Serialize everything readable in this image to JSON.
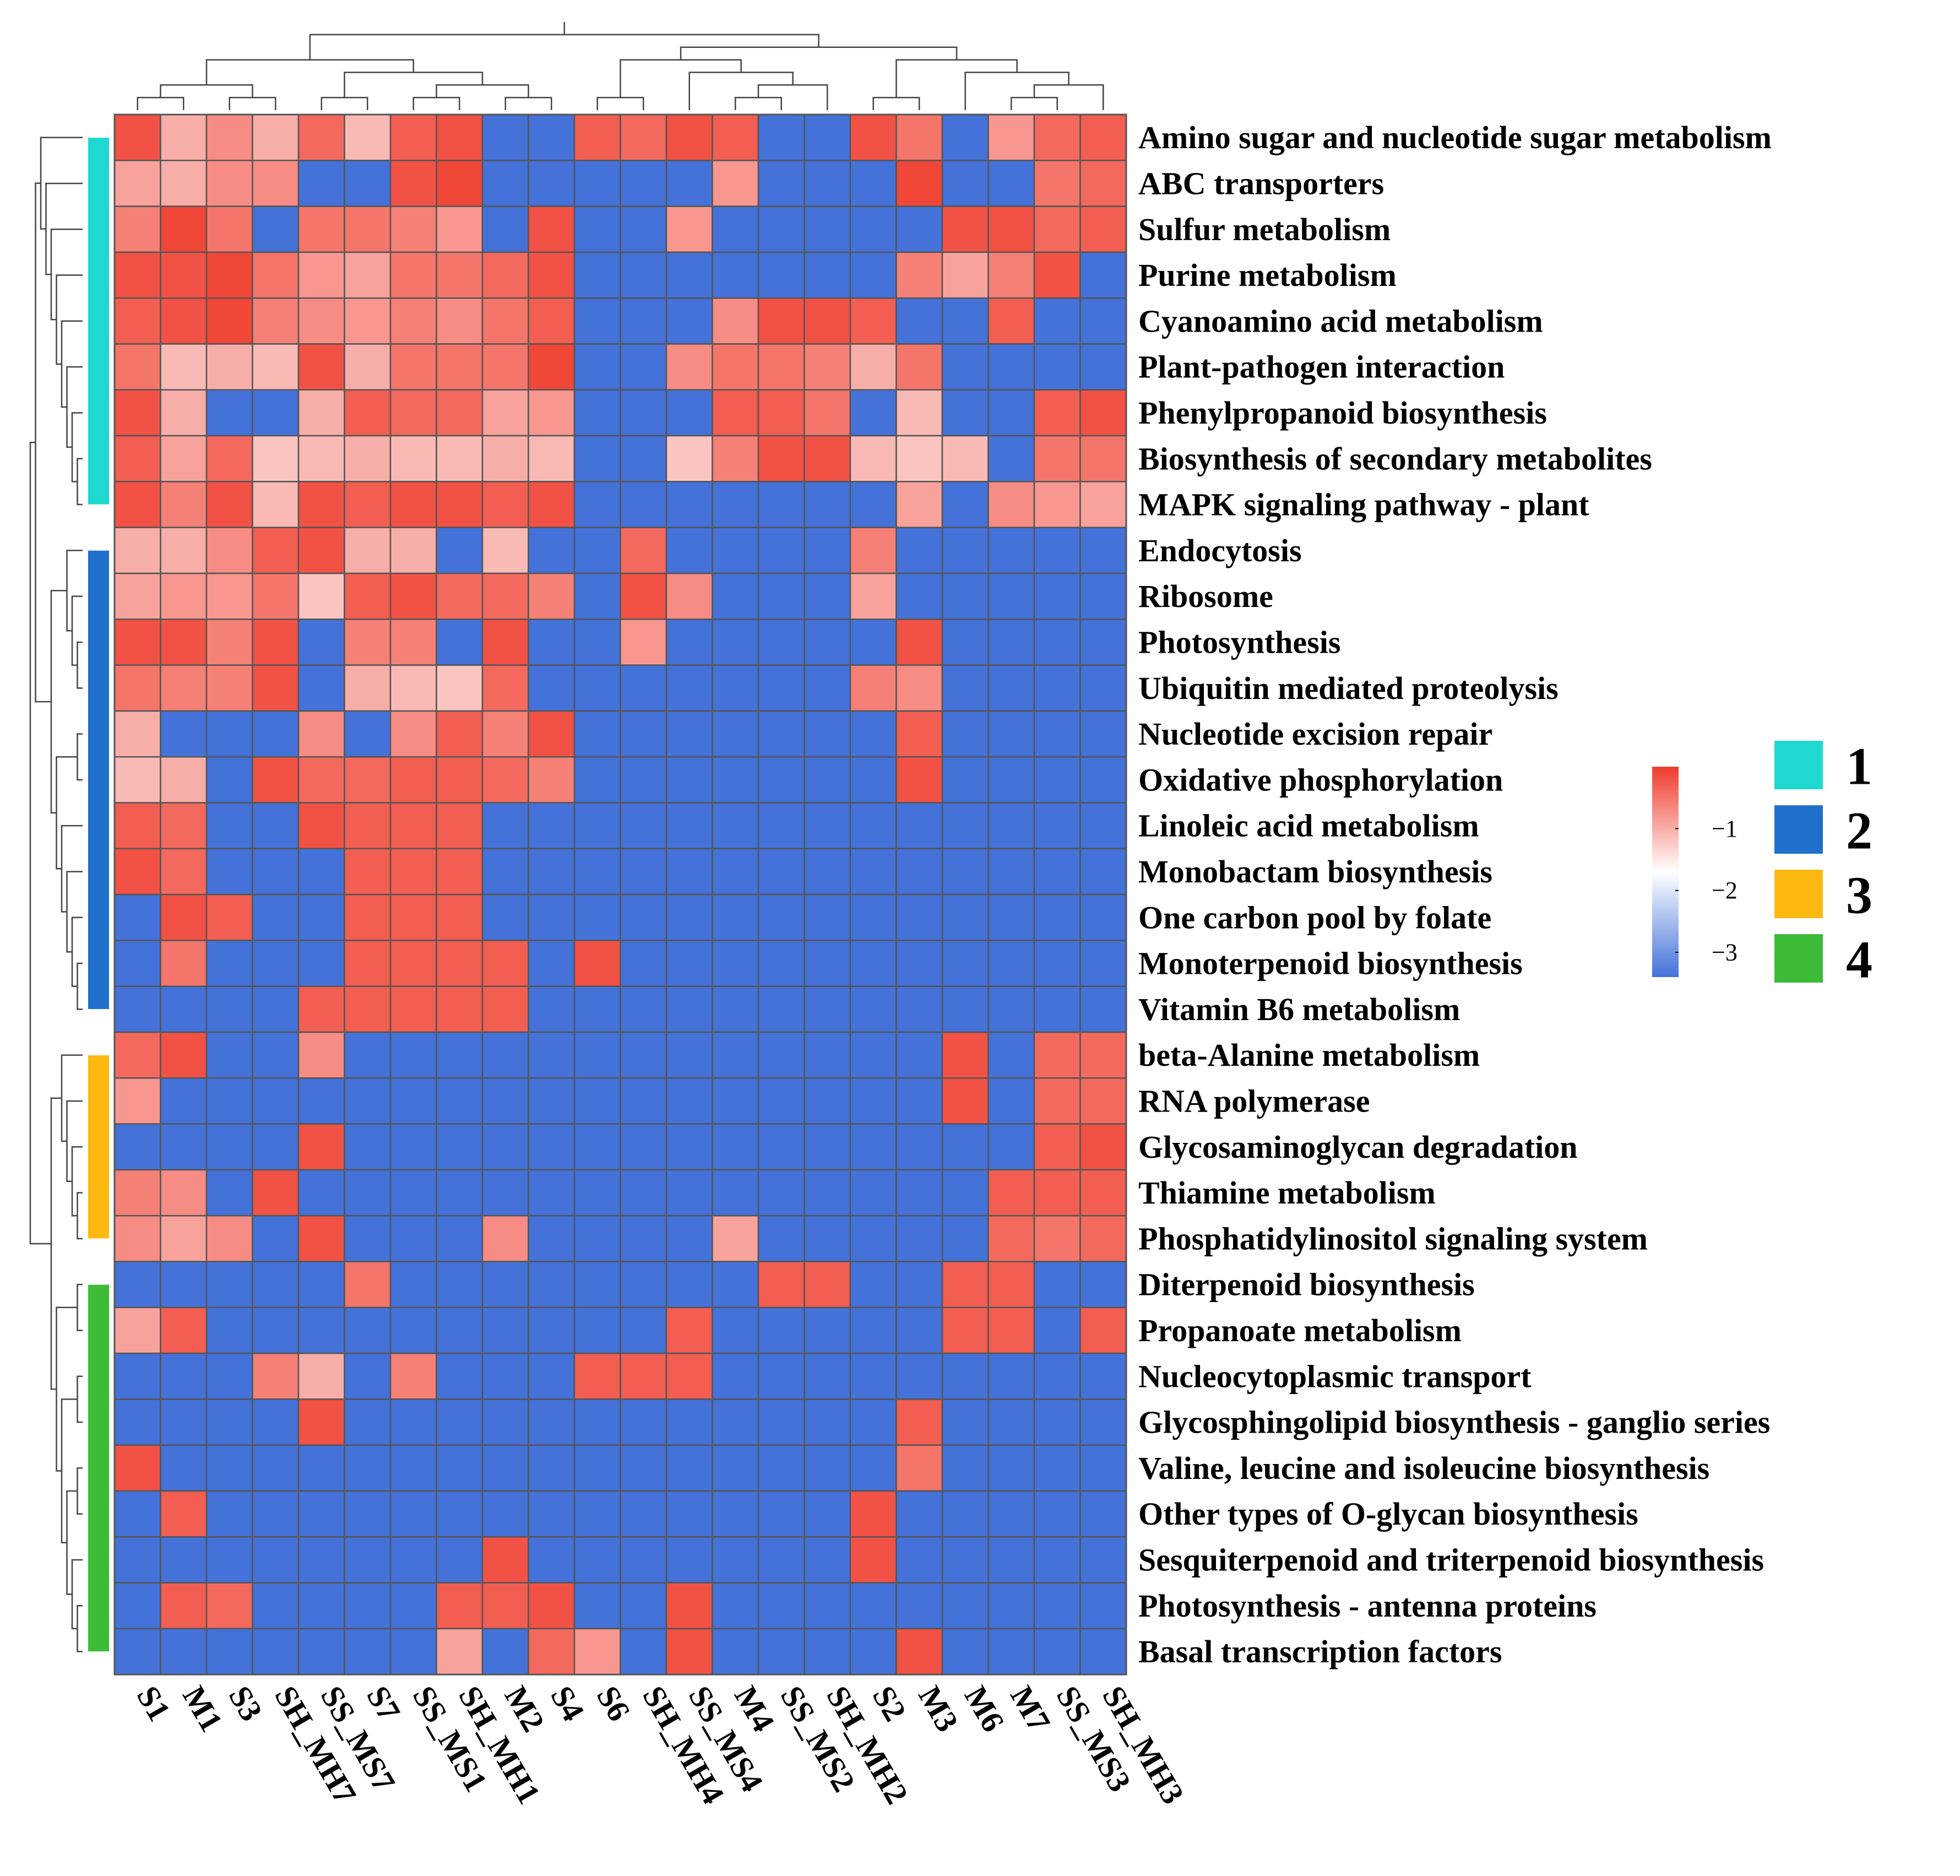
{
  "chart_data": {
    "type": "heatmap",
    "title": "",
    "xlabel": "",
    "ylabel": "",
    "columns": [
      "S1",
      "M1",
      "S3",
      "SH_MH7",
      "SS_MS7",
      "S7",
      "SS_MS1",
      "SH_MH1",
      "M2",
      "S4",
      "S6",
      "SH_MH4",
      "SS_MS4",
      "M4",
      "SS_MS2",
      "SH_MH2",
      "S2",
      "M3",
      "M6",
      "M7",
      "SS_MS3",
      "SH_MH3"
    ],
    "rows": [
      "Amino sugar and nucleotide sugar metabolism",
      "ABC transporters",
      "Sulfur metabolism",
      "Purine metabolism",
      "Cyanoamino acid metabolism",
      "Plant-pathogen interaction",
      "Phenylpropanoid biosynthesis",
      "Biosynthesis of secondary metabolites",
      "MAPK signaling pathway - plant",
      "Endocytosis",
      "Ribosome",
      "Photosynthesis",
      "Ubiquitin mediated proteolysis",
      "Nucleotide excision repair",
      "Oxidative phosphorylation",
      "Linoleic acid metabolism",
      "Monobactam biosynthesis",
      "One carbon pool by folate",
      "Monoterpenoid biosynthesis",
      "Vitamin B6 metabolism",
      "beta-Alanine metabolism",
      "RNA polymerase",
      "Glycosaminoglycan degradation",
      "Thiamine metabolism",
      "Phosphatidylinositol signaling system",
      "Diterpenoid biosynthesis",
      "Propanoate metabolism",
      "Nucleocytoplasmic transport",
      "Glycosphingolipid biosynthesis - ganglio series",
      "Valine, leucine and isoleucine biosynthesis",
      "Other types of O-glycan biosynthesis",
      "Sesquiterpenoid and triterpenoid biosynthesis",
      "Photosynthesis - antenna proteins",
      "Basal transcription factors"
    ],
    "values": [
      [
        -0.2,
        -1.0,
        -0.7,
        -1.0,
        -0.4,
        -1.1,
        -0.3,
        -0.2,
        -3.4,
        -3.4,
        -0.3,
        -0.4,
        -0.2,
        -0.3,
        -3.4,
        -3.4,
        -0.2,
        -0.5,
        -3.4,
        -0.8,
        -0.4,
        -0.3
      ],
      [
        -0.9,
        -1.0,
        -0.7,
        -0.7,
        -3.4,
        -3.4,
        -0.2,
        -0.1,
        -3.4,
        -3.4,
        -3.4,
        -3.4,
        -3.4,
        -0.8,
        -3.4,
        -3.4,
        -3.4,
        -0.1,
        -3.4,
        -3.4,
        -0.5,
        -0.4
      ],
      [
        -0.6,
        -0.1,
        -0.5,
        -3.4,
        -0.5,
        -0.5,
        -0.6,
        -0.8,
        -3.4,
        -0.2,
        -3.4,
        -3.4,
        -0.8,
        -3.4,
        -3.4,
        -3.4,
        -3.4,
        -3.4,
        -0.2,
        -0.2,
        -0.4,
        -0.3
      ],
      [
        -0.2,
        -0.2,
        -0.1,
        -0.5,
        -0.8,
        -0.9,
        -0.5,
        -0.5,
        -0.4,
        -0.2,
        -3.4,
        -3.4,
        -3.4,
        -3.4,
        -3.4,
        -3.4,
        -3.4,
        -0.6,
        -0.9,
        -0.6,
        -0.2,
        -3.4
      ],
      [
        -0.3,
        -0.2,
        -0.1,
        -0.6,
        -0.7,
        -0.8,
        -0.6,
        -0.7,
        -0.5,
        -0.3,
        -3.4,
        -3.4,
        -3.4,
        -0.7,
        -0.2,
        -0.2,
        -0.3,
        -3.4,
        -3.4,
        -0.3,
        -3.4,
        -3.4
      ],
      [
        -0.5,
        -1.1,
        -1.0,
        -1.1,
        -0.2,
        -1.0,
        -0.5,
        -0.5,
        -0.5,
        -0.1,
        -3.4,
        -3.4,
        -0.7,
        -0.5,
        -0.5,
        -0.6,
        -1.0,
        -0.5,
        -3.4,
        -3.4,
        -3.4,
        -3.4
      ],
      [
        -0.2,
        -1.0,
        -3.4,
        -3.4,
        -1.0,
        -0.3,
        -0.4,
        -0.4,
        -0.9,
        -0.8,
        -3.4,
        -3.4,
        -3.4,
        -0.3,
        -0.3,
        -0.5,
        -3.4,
        -1.1,
        -3.4,
        -3.4,
        -0.3,
        -0.2
      ],
      [
        -0.3,
        -0.9,
        -0.4,
        -1.2,
        -1.1,
        -1.0,
        -1.1,
        -1.1,
        -1.0,
        -1.1,
        -3.4,
        -3.4,
        -1.2,
        -0.6,
        -0.2,
        -0.2,
        -1.1,
        -1.2,
        -1.1,
        -3.4,
        -0.5,
        -0.5
      ],
      [
        -0.2,
        -0.6,
        -0.2,
        -1.1,
        -0.2,
        -0.3,
        -0.2,
        -0.2,
        -0.3,
        -0.2,
        -3.4,
        -3.4,
        -3.4,
        -3.4,
        -3.4,
        -3.4,
        -3.4,
        -0.9,
        -3.4,
        -0.7,
        -0.8,
        -0.9
      ],
      [
        -1.0,
        -1.0,
        -0.7,
        -0.3,
        -0.2,
        -1.0,
        -1.0,
        -3.4,
        -1.1,
        -3.4,
        -3.4,
        -0.4,
        -3.4,
        -3.4,
        -3.4,
        -3.4,
        -0.6,
        -3.4,
        -3.4,
        -3.4,
        -3.4,
        -3.4
      ],
      [
        -0.9,
        -0.8,
        -0.8,
        -0.5,
        -1.2,
        -0.3,
        -0.2,
        -0.4,
        -0.4,
        -0.6,
        -3.4,
        -0.2,
        -0.7,
        -3.4,
        -3.4,
        -3.4,
        -0.9,
        -3.4,
        -3.4,
        -3.4,
        -3.4,
        -3.4
      ],
      [
        -0.2,
        -0.2,
        -0.6,
        -0.2,
        -3.4,
        -0.6,
        -0.6,
        -3.4,
        -0.2,
        -3.4,
        -3.4,
        -0.8,
        -3.4,
        -3.4,
        -3.4,
        -3.4,
        -3.4,
        -0.2,
        -3.4,
        -3.4,
        -3.4,
        -3.4
      ],
      [
        -0.5,
        -0.6,
        -0.6,
        -0.2,
        -3.4,
        -1.0,
        -1.1,
        -1.2,
        -0.4,
        -3.4,
        -3.4,
        -3.4,
        -3.4,
        -3.4,
        -3.4,
        -3.4,
        -0.6,
        -0.7,
        -3.4,
        -3.4,
        -3.4,
        -3.4
      ],
      [
        -1.0,
        -3.4,
        -3.4,
        -3.4,
        -0.7,
        -3.4,
        -0.7,
        -0.3,
        -0.6,
        -0.2,
        -3.4,
        -3.4,
        -3.4,
        -3.4,
        -3.4,
        -3.4,
        -3.4,
        -0.3,
        -3.4,
        -3.4,
        -3.4,
        -3.4
      ],
      [
        -1.1,
        -1.0,
        -3.4,
        -0.2,
        -0.4,
        -0.4,
        -0.3,
        -0.3,
        -0.4,
        -0.6,
        -3.4,
        -3.4,
        -3.4,
        -3.4,
        -3.4,
        -3.4,
        -3.4,
        -0.2,
        -3.4,
        -3.4,
        -3.4,
        -3.4
      ],
      [
        -0.3,
        -0.4,
        -3.4,
        -3.4,
        -0.2,
        -0.3,
        -0.3,
        -0.3,
        -3.4,
        -3.4,
        -3.4,
        -3.4,
        -3.4,
        -3.4,
        -3.4,
        -3.4,
        -3.4,
        -3.4,
        -3.4,
        -3.4,
        -3.4,
        -3.4
      ],
      [
        -0.2,
        -0.4,
        -3.4,
        -3.4,
        -3.4,
        -0.3,
        -0.3,
        -0.3,
        -3.4,
        -3.4,
        -3.4,
        -3.4,
        -3.4,
        -3.4,
        -3.4,
        -3.4,
        -3.4,
        -3.4,
        -3.4,
        -3.4,
        -3.4,
        -3.4
      ],
      [
        -3.4,
        -0.2,
        -0.3,
        -3.4,
        -3.4,
        -0.3,
        -0.3,
        -0.3,
        -3.4,
        -3.4,
        -3.4,
        -3.4,
        -3.4,
        -3.4,
        -3.4,
        -3.4,
        -3.4,
        -3.4,
        -3.4,
        -3.4,
        -3.4,
        -3.4
      ],
      [
        -3.4,
        -0.5,
        -3.4,
        -3.4,
        -3.4,
        -0.3,
        -0.3,
        -0.3,
        -0.3,
        -3.4,
        -0.2,
        -3.4,
        -3.4,
        -3.4,
        -3.4,
        -3.4,
        -3.4,
        -3.4,
        -3.4,
        -3.4,
        -3.4,
        -3.4
      ],
      [
        -3.4,
        -3.4,
        -3.4,
        -3.4,
        -0.3,
        -0.3,
        -0.3,
        -0.3,
        -0.3,
        -3.4,
        -3.4,
        -3.4,
        -3.4,
        -3.4,
        -3.4,
        -3.4,
        -3.4,
        -3.4,
        -3.4,
        -3.4,
        -3.4,
        -3.4
      ],
      [
        -0.4,
        -0.2,
        -3.4,
        -3.4,
        -0.7,
        -3.4,
        -3.4,
        -3.4,
        -3.4,
        -3.4,
        -3.4,
        -3.4,
        -3.4,
        -3.4,
        -3.4,
        -3.4,
        -3.4,
        -3.4,
        -0.2,
        -3.4,
        -0.4,
        -0.4
      ],
      [
        -0.8,
        -3.4,
        -3.4,
        -3.4,
        -3.4,
        -3.4,
        -3.4,
        -3.4,
        -3.4,
        -3.4,
        -3.4,
        -3.4,
        -3.4,
        -3.4,
        -3.4,
        -3.4,
        -3.4,
        -3.4,
        -0.2,
        -3.4,
        -0.4,
        -0.4
      ],
      [
        -3.4,
        -3.4,
        -3.4,
        -3.4,
        -0.2,
        -3.4,
        -3.4,
        -3.4,
        -3.4,
        -3.4,
        -3.4,
        -3.4,
        -3.4,
        -3.4,
        -3.4,
        -3.4,
        -3.4,
        -3.4,
        -3.4,
        -3.4,
        -0.3,
        -0.2
      ],
      [
        -0.6,
        -0.7,
        -3.4,
        -0.2,
        -3.4,
        -3.4,
        -3.4,
        -3.4,
        -3.4,
        -3.4,
        -3.4,
        -3.4,
        -3.4,
        -3.4,
        -3.4,
        -3.4,
        -3.4,
        -3.4,
        -3.4,
        -0.3,
        -0.3,
        -0.3
      ],
      [
        -0.7,
        -0.9,
        -0.7,
        -3.4,
        -0.2,
        -3.4,
        -3.4,
        -3.4,
        -0.7,
        -3.4,
        -3.4,
        -3.4,
        -3.4,
        -0.9,
        -3.4,
        -3.4,
        -3.4,
        -3.4,
        -3.4,
        -0.4,
        -0.5,
        -0.4
      ],
      [
        -3.4,
        -3.4,
        -3.4,
        -3.4,
        -3.4,
        -0.5,
        -3.4,
        -3.4,
        -3.4,
        -3.4,
        -3.4,
        -3.4,
        -3.4,
        -3.4,
        -0.3,
        -0.3,
        -3.4,
        -3.4,
        -0.3,
        -0.3,
        -3.4,
        -3.4
      ],
      [
        -0.9,
        -0.3,
        -3.4,
        -3.4,
        -3.4,
        -3.4,
        -3.4,
        -3.4,
        -3.4,
        -3.4,
        -3.4,
        -3.4,
        -0.3,
        -3.4,
        -3.4,
        -3.4,
        -3.4,
        -3.4,
        -0.3,
        -0.3,
        -3.4,
        -0.3
      ],
      [
        -3.4,
        -3.4,
        -3.4,
        -0.6,
        -1.0,
        -3.4,
        -0.6,
        -3.4,
        -3.4,
        -3.4,
        -0.3,
        -0.3,
        -0.3,
        -3.4,
        -3.4,
        -3.4,
        -3.4,
        -3.4,
        -3.4,
        -3.4,
        -3.4,
        -3.4
      ],
      [
        -3.4,
        -3.4,
        -3.4,
        -3.4,
        -0.2,
        -3.4,
        -3.4,
        -3.4,
        -3.4,
        -3.4,
        -3.4,
        -3.4,
        -3.4,
        -3.4,
        -3.4,
        -3.4,
        -3.4,
        -0.3,
        -3.4,
        -3.4,
        -3.4,
        -3.4
      ],
      [
        -0.2,
        -3.4,
        -3.4,
        -3.4,
        -3.4,
        -3.4,
        -3.4,
        -3.4,
        -3.4,
        -3.4,
        -3.4,
        -3.4,
        -3.4,
        -3.4,
        -3.4,
        -3.4,
        -3.4,
        -0.5,
        -3.4,
        -3.4,
        -3.4,
        -3.4
      ],
      [
        -3.4,
        -0.3,
        -3.4,
        -3.4,
        -3.4,
        -3.4,
        -3.4,
        -3.4,
        -3.4,
        -3.4,
        -3.4,
        -3.4,
        -3.4,
        -3.4,
        -3.4,
        -3.4,
        -0.2,
        -3.4,
        -3.4,
        -3.4,
        -3.4,
        -3.4
      ],
      [
        -3.4,
        -3.4,
        -3.4,
        -3.4,
        -3.4,
        -3.4,
        -3.4,
        -3.4,
        -0.2,
        -3.4,
        -3.4,
        -3.4,
        -3.4,
        -3.4,
        -3.4,
        -3.4,
        -0.2,
        -3.4,
        -3.4,
        -3.4,
        -3.4,
        -3.4
      ],
      [
        -3.4,
        -0.3,
        -0.4,
        -3.4,
        -3.4,
        -3.4,
        -3.4,
        -0.3,
        -0.3,
        -0.2,
        -3.4,
        -3.4,
        -0.2,
        -3.4,
        -3.4,
        -3.4,
        -3.4,
        -3.4,
        -3.4,
        -3.4,
        -3.4,
        -3.4
      ],
      [
        -3.4,
        -3.4,
        -3.4,
        -3.4,
        -3.4,
        -3.4,
        -3.4,
        -0.9,
        -3.4,
        -0.4,
        -0.8,
        -3.4,
        -0.2,
        -3.4,
        -3.4,
        -3.4,
        -3.4,
        -0.2,
        -3.4,
        -3.4,
        -3.4,
        -3.4
      ]
    ],
    "color_scale": {
      "min": -3.4,
      "max": 0,
      "stops": [
        {
          "value": -3.4,
          "color": "#4472d9"
        },
        {
          "value": -1.7,
          "color": "#ffffff"
        },
        {
          "value": 0,
          "color": "#ef3b2c"
        }
      ],
      "ticks": [
        {
          "value": -1,
          "label": "−1"
        },
        {
          "value": -2,
          "label": "−2"
        },
        {
          "value": -3,
          "label": "−3"
        }
      ]
    },
    "row_clusters": [
      {
        "label": "1",
        "color": "#1fd8d0",
        "rows": [
          0,
          8
        ]
      },
      {
        "label": "2",
        "color": "#2170cc",
        "rows": [
          9,
          19
        ]
      },
      {
        "label": "3",
        "color": "#fdb912",
        "rows": [
          20,
          24
        ]
      },
      {
        "label": "4",
        "color": "#3dba38",
        "rows": [
          25,
          33
        ]
      }
    ],
    "legend": "right",
    "grid": true
  }
}
